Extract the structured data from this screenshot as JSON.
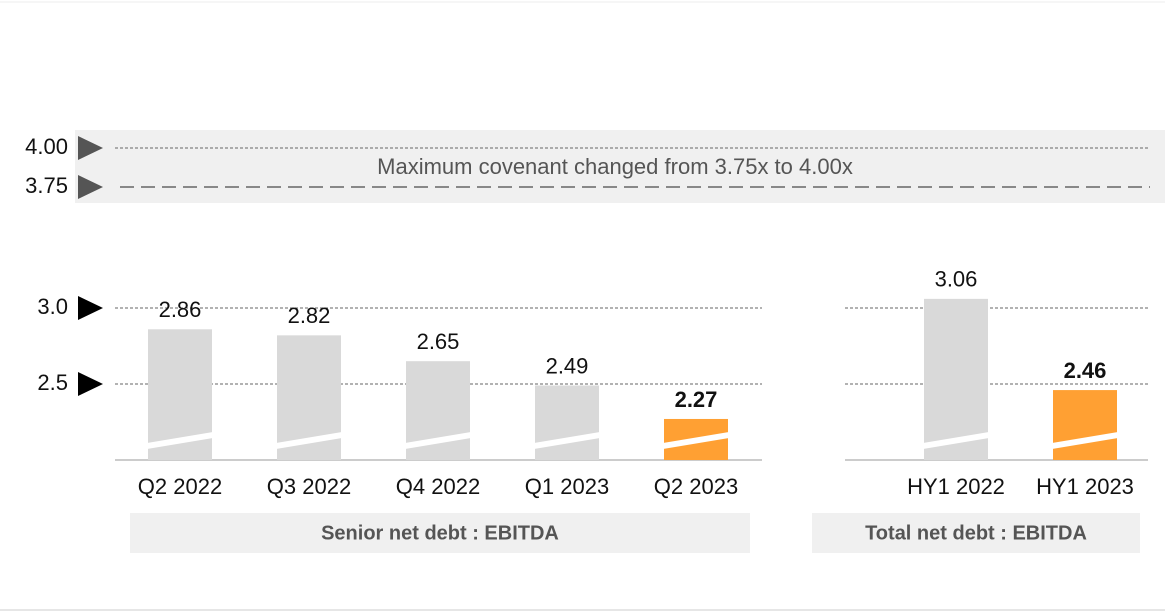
{
  "covenant": {
    "text": "Maximum covenant changed from 3.75x to 4.00x",
    "levels": [
      {
        "value": 4,
        "label": "4.00"
      },
      {
        "value": 3.75,
        "label": "3.75"
      }
    ]
  },
  "chart_data": [
    {
      "type": "bar",
      "xlabel": "Senior net debt : EBITDA",
      "categories": [
        "Q2 2022",
        "Q3 2022",
        "Q4 2022",
        "Q1 2023",
        "Q2 2023"
      ],
      "values": [
        2.86,
        2.82,
        2.65,
        2.49,
        2.27
      ],
      "colors": [
        "#d9d9d9",
        "#d9d9d9",
        "#d9d9d9",
        "#d9d9d9",
        "#ffa033"
      ],
      "ylim": [
        2,
        3.2
      ],
      "yticks": [
        {
          "value": 3,
          "label": "3.0"
        },
        {
          "value": 2.5,
          "label": "2.5"
        }
      ],
      "grid": true
    },
    {
      "type": "bar",
      "xlabel": "Total net debt : EBITDA",
      "categories": [
        "HY1 2022",
        "HY1 2023"
      ],
      "values": [
        3.06,
        2.46
      ],
      "colors": [
        "#d9d9d9",
        "#ffa033"
      ],
      "ylim": [
        2,
        3.2
      ],
      "yticks": [
        3,
        2.5
      ],
      "grid": true
    }
  ]
}
